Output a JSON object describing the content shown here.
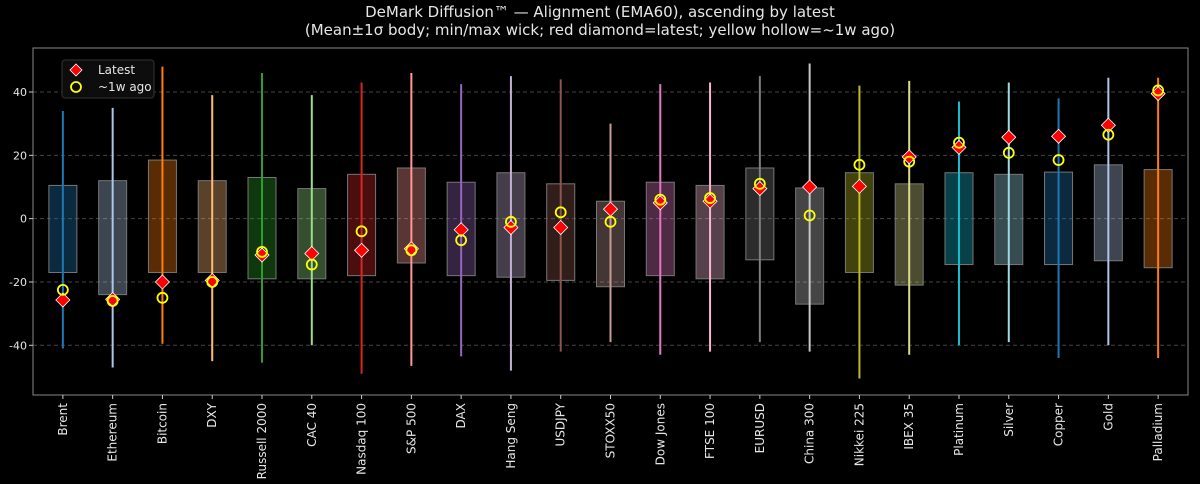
{
  "chart_data": {
    "type": "box",
    "title": "DeMark Diffusion™ — Alignment (EMA60), ascending by latest",
    "subtitle": "(Mean±1σ body; min/max wick; red diamond=latest; yellow hollow=~1w ago)",
    "xlabel": "",
    "ylabel": "",
    "ylim": [
      -55.7,
      53.9
    ],
    "yticks": [
      -40,
      -20,
      0,
      20,
      40
    ],
    "grid": "horizontal dashed",
    "legend": {
      "placement": "top-left",
      "entries": [
        "Latest",
        "~1w ago"
      ]
    },
    "colors": {
      "latest": "#ff0000",
      "week_ago": "#ffff00",
      "background": "#000000"
    },
    "categories": [
      "Brent",
      "Ethereum",
      "Bitcoin",
      "DXY",
      "Russell 2000",
      "CAC 40",
      "Nasdaq 100",
      "S&P 500",
      "DAX",
      "Hang Seng",
      "USDJPY",
      "STOXX50",
      "Dow Jones",
      "FTSE 100",
      "EURUSD",
      "China 300",
      "Nikkei 225",
      "IBEX 35",
      "Platinum",
      "Silver",
      "Copper",
      "Gold",
      "Palladium"
    ],
    "series_colors": [
      "#1f77b4",
      "#aec7e8",
      "#ff7f0e",
      "#ffbb78",
      "#2ca02c",
      "#98df8a",
      "#d62728",
      "#ff9896",
      "#9467bd",
      "#c5b0d5",
      "#8c564b",
      "#c49c94",
      "#e377c2",
      "#f7b6d2",
      "#7f7f7f",
      "#c7c7c7",
      "#bcbd22",
      "#dbdb8d",
      "#17becf",
      "#9edae5",
      "#1f77b4",
      "#aec7e8",
      "#ff7f0e"
    ],
    "max": [
      34,
      35,
      48,
      39,
      46,
      39,
      43,
      46,
      42.5,
      45,
      44,
      30,
      42.5,
      43,
      45,
      49,
      42,
      43.5,
      37,
      43,
      38,
      44.5,
      44.5
    ],
    "min": [
      -41,
      -47,
      -39.5,
      -45,
      -45.5,
      -40,
      -49,
      -46.5,
      -43.5,
      -48,
      -42,
      -39,
      -43,
      -42,
      -39,
      -42,
      -50.5,
      -43,
      -40,
      -39,
      -44,
      -40,
      -44
    ],
    "box_high": [
      10.5,
      12,
      18.5,
      12,
      13,
      9.5,
      14,
      16,
      11.5,
      14.5,
      11,
      5.5,
      11.5,
      10.5,
      16,
      9.7,
      14.5,
      11,
      14.5,
      14,
      14.7,
      17,
      15.5
    ],
    "box_low": [
      -17,
      -24,
      -17,
      -17,
      -19,
      -19,
      -18,
      -14,
      -18,
      -18.5,
      -19.5,
      -21.5,
      -18,
      -19,
      -13,
      -27,
      -17,
      -21,
      -14.5,
      -14.5,
      -14.5,
      -13.3,
      -15.5
    ],
    "latest": [
      -25.7,
      -25.5,
      -20,
      -19.5,
      -11.5,
      -11,
      -10,
      -9.5,
      -3.5,
      -2.8,
      -2.8,
      3,
      5,
      5.5,
      9.5,
      10,
      10.2,
      19.5,
      22.5,
      25.7,
      26,
      29.5,
      39.5
    ],
    "week_ago": [
      -22.5,
      -26,
      -25,
      -20,
      -10.5,
      -14.5,
      -4,
      -10,
      -6.8,
      -1,
      2,
      -1,
      6,
      6.5,
      11,
      1,
      17,
      18,
      24,
      20.8,
      18.5,
      26.5,
      40.5
    ]
  }
}
